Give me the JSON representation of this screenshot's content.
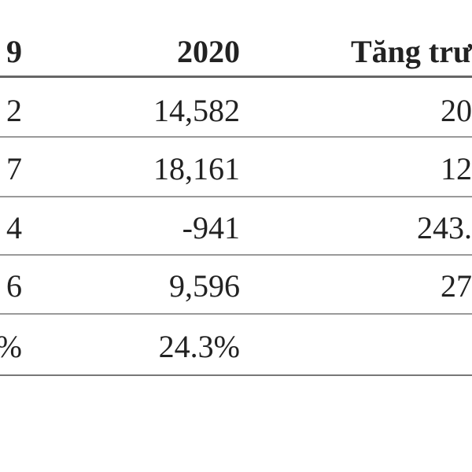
{
  "table": {
    "header": [
      "9",
      "2020",
      "Tăng trư"
    ],
    "rows": [
      [
        "2",
        "14,582",
        "20"
      ],
      [
        "7",
        "18,161",
        "12"
      ],
      [
        "4",
        "-941",
        "243."
      ],
      [
        "6",
        "9,596",
        "27"
      ],
      [
        "%",
        "24.3%"
      ]
    ]
  }
}
